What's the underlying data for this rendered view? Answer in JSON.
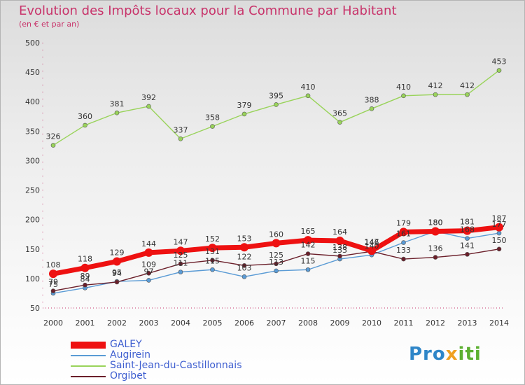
{
  "title": "Evolution des Impôts locaux pour la Commune par Habitant",
  "subtitle": "(en € et par an)",
  "brand": {
    "text": "Proxiti",
    "parts": [
      "Pro",
      "x",
      "iti"
    ]
  },
  "colors": {
    "title": "#c8336a",
    "axis_text": "#333333",
    "GALEY": "#ee1111",
    "Augirein": "#5a9bd5",
    "Saint-Jean-du-Castillonnais": "#99d35a",
    "Orgibet": "#6b1f2a"
  },
  "chart_data": {
    "type": "line",
    "title": "Evolution des Impôts locaux pour la Commune par Habitant",
    "subtitle": "(en € et par an)",
    "xlabel": "",
    "ylabel": "",
    "ylim": [
      50,
      500
    ],
    "yticks": [
      50,
      100,
      150,
      200,
      250,
      300,
      350,
      400,
      450,
      500
    ],
    "grid": false,
    "legend_position": "bottom-left",
    "categories": [
      "2000",
      "2001",
      "2002",
      "2003",
      "2004",
      "2005",
      "2006",
      "2007",
      "2008",
      "2009",
      "2010",
      "2011",
      "2012",
      "2013",
      "2014"
    ],
    "series": [
      {
        "name": "Saint-Jean-du-Castillonnais",
        "values": [
          326,
          360,
          381,
          392,
          337,
          358,
          379,
          395,
          410,
          365,
          388,
          410,
          412,
          412,
          453
        ]
      },
      {
        "name": "Augirein",
        "values": [
          75,
          84,
          95,
          97,
          111,
          115,
          103,
          113,
          115,
          133,
          140,
          161,
          180,
          168,
          177
        ]
      },
      {
        "name": "Orgibet",
        "values": [
          79,
          89,
          94,
          109,
          125,
          131,
          122,
          125,
          142,
          138,
          146,
          133,
          136,
          141,
          150
        ]
      },
      {
        "name": "GALEY",
        "values": [
          108,
          118,
          129,
          144,
          147,
          152,
          153,
          160,
          165,
          164,
          147,
          179,
          180,
          181,
          187
        ]
      }
    ]
  },
  "legend": [
    {
      "name": "GALEY"
    },
    {
      "name": "Augirein"
    },
    {
      "name": "Saint-Jean-du-Castillonnais"
    },
    {
      "name": "Orgibet"
    }
  ]
}
